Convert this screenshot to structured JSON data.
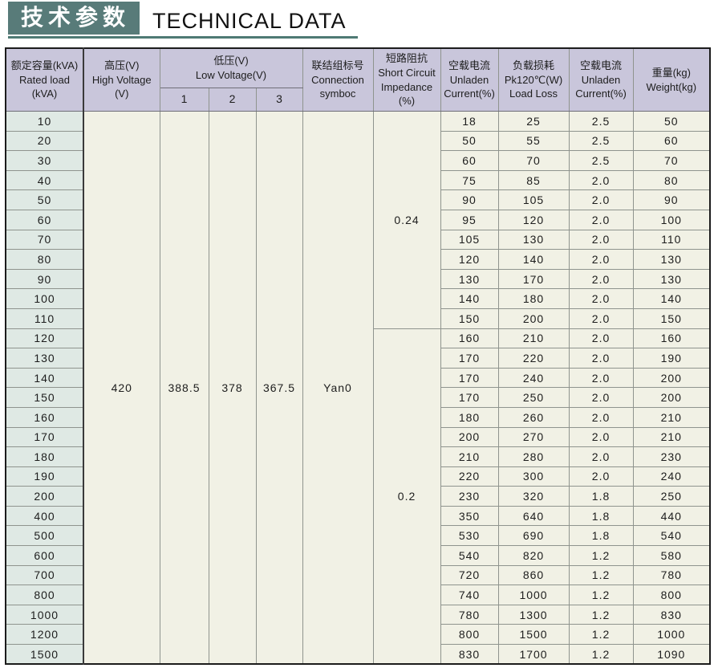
{
  "page": {
    "title_cn": "技术参数",
    "title_en": "TECHNICAL DATA"
  },
  "colors": {
    "title_bg": "#587b79",
    "underline": "#4f7a74",
    "header_bg": "#c9c6db",
    "row_label_bg": "#dfe9e4",
    "cell_bg": "#f1f1e5"
  },
  "table": {
    "headers": {
      "rated_load": "额定容量(kVA)\nRated load\n(kVA)",
      "high_voltage": "高压(V)\nHigh Voltage\n(V)",
      "low_voltage": "低压(V)\nLow Voltage(V)",
      "lv_sub": [
        "1",
        "2",
        "3"
      ],
      "connection": "联结组标号\nConnection\nsymboc",
      "impedance": "短路阻抗\nShort Circuit\nImpedance\n(%)",
      "unladen_current_1": "空载电流\nUnladen\nCurrent(%)",
      "load_loss": "负载损耗\nPk120℃(W)\nLoad Loss",
      "unladen_current_2": "空载电流\nUnladen\nCurrent(%)",
      "weight": "重量(kg)\nWeight(kg)"
    },
    "merged": {
      "high_voltage": "420",
      "low_voltage": [
        "388.5",
        "378",
        "367.5"
      ],
      "connection": "Yan0",
      "impedance_groups": [
        {
          "value": "0.24",
          "rows": 11
        },
        {
          "value": "0.2",
          "rows": 17
        }
      ]
    },
    "rows": [
      [
        "10",
        "18",
        "25",
        "2.5",
        "50"
      ],
      [
        "20",
        "50",
        "55",
        "2.5",
        "60"
      ],
      [
        "30",
        "60",
        "70",
        "2.5",
        "70"
      ],
      [
        "40",
        "75",
        "85",
        "2.0",
        "80"
      ],
      [
        "50",
        "90",
        "105",
        "2.0",
        "90"
      ],
      [
        "60",
        "95",
        "120",
        "2.0",
        "100"
      ],
      [
        "70",
        "105",
        "130",
        "2.0",
        "110"
      ],
      [
        "80",
        "120",
        "140",
        "2.0",
        "130"
      ],
      [
        "90",
        "130",
        "170",
        "2.0",
        "130"
      ],
      [
        "100",
        "140",
        "180",
        "2.0",
        "140"
      ],
      [
        "110",
        "150",
        "200",
        "2.0",
        "150"
      ],
      [
        "120",
        "160",
        "210",
        "2.0",
        "160"
      ],
      [
        "130",
        "170",
        "220",
        "2.0",
        "190"
      ],
      [
        "140",
        "170",
        "240",
        "2.0",
        "200"
      ],
      [
        "150",
        "170",
        "250",
        "2.0",
        "200"
      ],
      [
        "160",
        "180",
        "260",
        "2.0",
        "210"
      ],
      [
        "170",
        "200",
        "270",
        "2.0",
        "210"
      ],
      [
        "180",
        "210",
        "280",
        "2.0",
        "230"
      ],
      [
        "190",
        "220",
        "300",
        "2.0",
        "240"
      ],
      [
        "200",
        "230",
        "320",
        "1.8",
        "250"
      ],
      [
        "400",
        "350",
        "640",
        "1.8",
        "440"
      ],
      [
        "500",
        "530",
        "690",
        "1.8",
        "540"
      ],
      [
        "600",
        "540",
        "820",
        "1.2",
        "580"
      ],
      [
        "700",
        "720",
        "860",
        "1.2",
        "780"
      ],
      [
        "800",
        "740",
        "1000",
        "1.2",
        "800"
      ],
      [
        "1000",
        "780",
        "1300",
        "1.2",
        "830"
      ],
      [
        "1200",
        "800",
        "1500",
        "1.2",
        "1000"
      ],
      [
        "1500",
        "830",
        "1700",
        "1.2",
        "1090"
      ]
    ]
  }
}
